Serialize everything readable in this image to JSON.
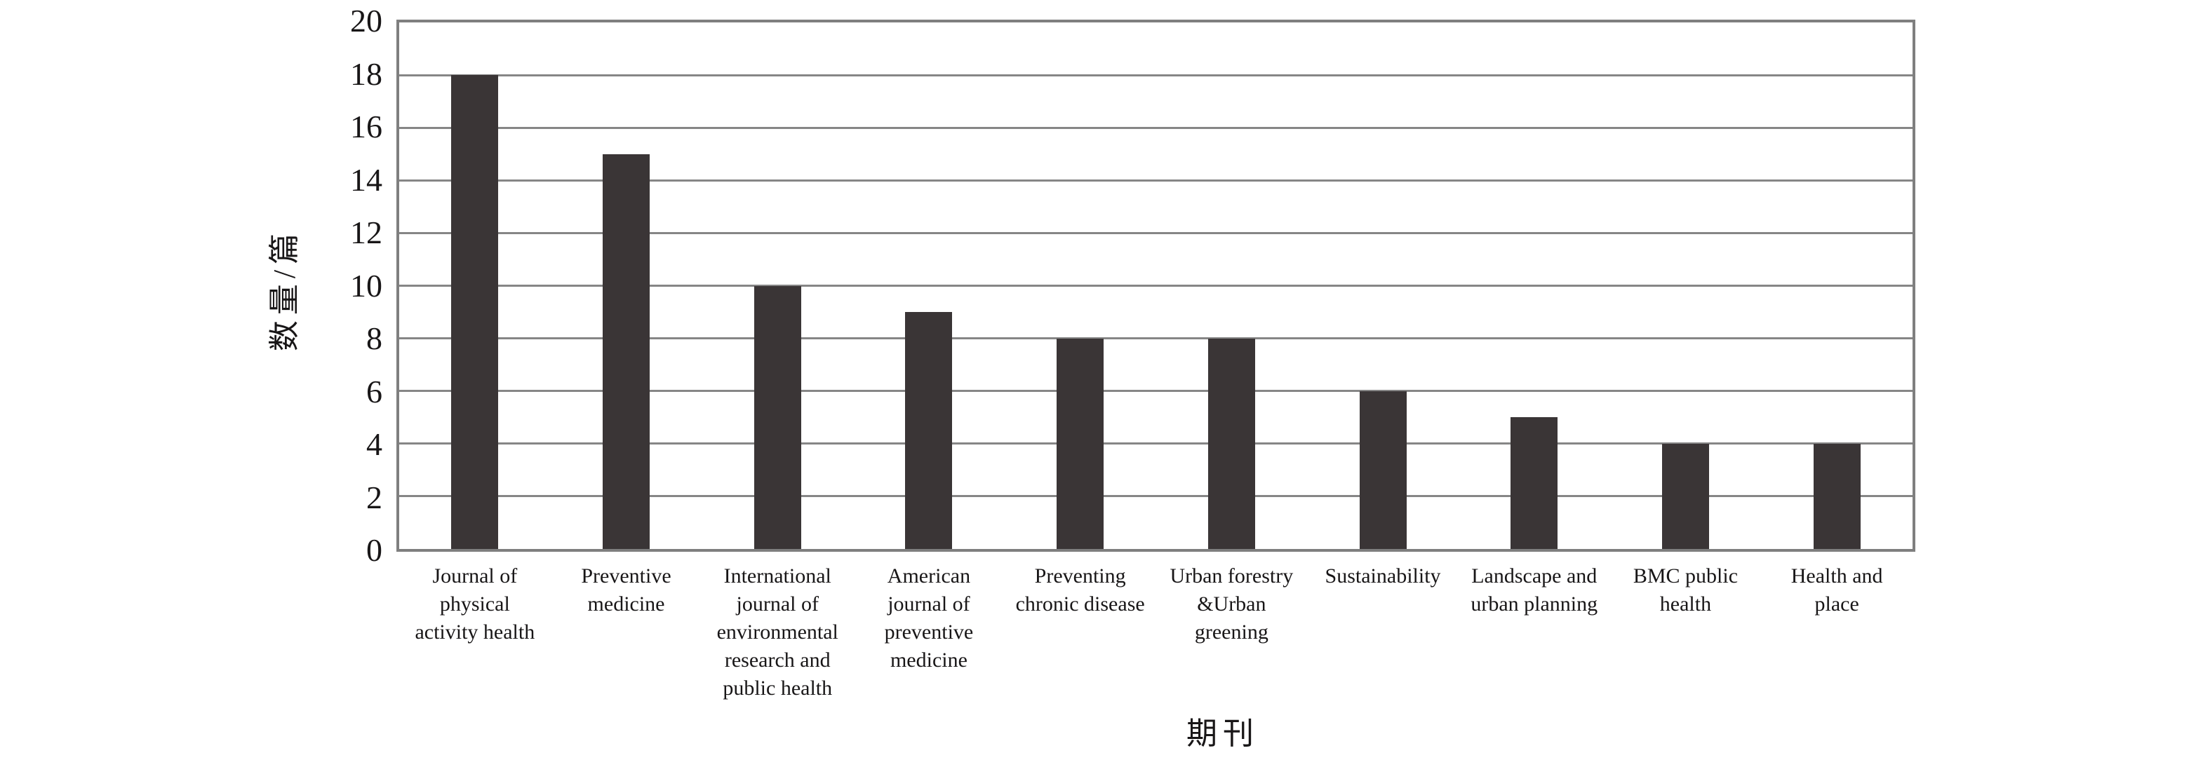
{
  "figure": {
    "background": "#ffffff"
  },
  "chart_data": {
    "type": "bar",
    "title": "",
    "xlabel": "期刊",
    "ylabel": "数量/篇",
    "ylim": [
      0,
      20
    ],
    "ytick_step": 2,
    "yticks": [
      20,
      18,
      16,
      14,
      12,
      10,
      8,
      6,
      4,
      2,
      0
    ],
    "grid": true,
    "legend_position": "none",
    "bar_color": "#3a3536",
    "axis_color": "#7f7f7f",
    "categories": [
      "Journal of physical activity health",
      "Preventive medicine",
      "International journal of environmental research and public health",
      "American journal of preventive medicine",
      "Preventing chronic disease",
      "Urban forestry &Urban greening",
      "Sustainability",
      "Landscape and urban planning",
      "BMC public health",
      "Health and place"
    ],
    "category_lines": [
      [
        "Journal of",
        "physical",
        "activity health"
      ],
      [
        "Preventive",
        "medicine"
      ],
      [
        "International",
        "journal of",
        "environmental",
        "research and",
        "public health"
      ],
      [
        "American",
        "journal of",
        "preventive",
        "medicine"
      ],
      [
        "Preventing",
        "chronic disease"
      ],
      [
        "Urban forestry",
        "&Urban",
        "greening"
      ],
      [
        "Sustainability"
      ],
      [
        "Landscape and",
        "urban planning"
      ],
      [
        "BMC public",
        "health"
      ],
      [
        "Health and",
        "place"
      ]
    ],
    "values": [
      18,
      15,
      10,
      9,
      8,
      8,
      6,
      5,
      4,
      4
    ]
  }
}
